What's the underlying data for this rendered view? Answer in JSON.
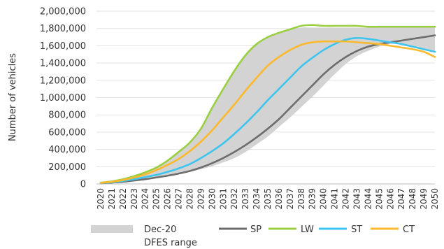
{
  "chart_data": {
    "type": "line",
    "title": "",
    "xlabel": "",
    "ylabel": "Number of vehicles",
    "ylim": [
      0,
      2000000
    ],
    "ytick_step": 200000,
    "ytick_labels": [
      "0",
      "200,000",
      "400,000",
      "600,000",
      "800,000",
      "1,000,000",
      "1,200,000",
      "1,400,000",
      "1,600,000",
      "1,800,000",
      "2,000,000"
    ],
    "grid": "horizontal",
    "legend_position": "bottom",
    "categories": [
      "2020",
      "2021",
      "2022",
      "2023",
      "2024",
      "2025",
      "2026",
      "2027",
      "2028",
      "2029",
      "2030",
      "2031",
      "2032",
      "2033",
      "2034",
      "2035",
      "2036",
      "2037",
      "2038",
      "2039",
      "2040",
      "2041",
      "2042",
      "2043",
      "2044",
      "2045",
      "2046",
      "2047",
      "2048",
      "2049",
      "2050"
    ],
    "range": {
      "name": "Dec-20 DFES range",
      "name_line1": "Dec-20",
      "name_line2": "DFES range",
      "color": "#d3d3d3",
      "upper": [
        15000,
        30000,
        55000,
        90000,
        135000,
        190000,
        270000,
        370000,
        480000,
        640000,
        880000,
        1100000,
        1310000,
        1490000,
        1620000,
        1700000,
        1750000,
        1790000,
        1810000,
        1810000,
        1810000,
        1810000,
        1810000,
        1810000,
        1810000,
        1810000,
        1810000,
        1810000,
        1810000,
        1810000,
        1810000
      ],
      "lower": [
        8000,
        16000,
        25000,
        40000,
        55000,
        75000,
        95000,
        115000,
        140000,
        170000,
        205000,
        250000,
        300000,
        370000,
        460000,
        550000,
        660000,
        770000,
        890000,
        1010000,
        1140000,
        1270000,
        1390000,
        1480000,
        1540000,
        1590000,
        1620000,
        1620000,
        1600000,
        1570000,
        1540000
      ]
    },
    "series": [
      {
        "name": "SP",
        "color": "#6d6d6d",
        "values": [
          8000,
          16000,
          25000,
          40000,
          55000,
          75000,
          95000,
          120000,
          150000,
          190000,
          240000,
          300000,
          370000,
          450000,
          540000,
          640000,
          750000,
          880000,
          1010000,
          1140000,
          1270000,
          1380000,
          1470000,
          1540000,
          1590000,
          1620000,
          1640000,
          1660000,
          1680000,
          1700000,
          1720000
        ]
      },
      {
        "name": "LW",
        "color": "#9bcf42",
        "values": [
          15000,
          30000,
          55000,
          90000,
          135000,
          190000,
          270000,
          370000,
          480000,
          640000,
          880000,
          1100000,
          1310000,
          1490000,
          1620000,
          1700000,
          1750000,
          1790000,
          1830000,
          1840000,
          1830000,
          1830000,
          1830000,
          1830000,
          1820000,
          1820000,
          1820000,
          1820000,
          1820000,
          1820000,
          1820000
        ]
      },
      {
        "name": "ST",
        "color": "#3ec5ef",
        "values": [
          10000,
          20000,
          35000,
          55000,
          80000,
          105000,
          140000,
          180000,
          230000,
          300000,
          380000,
          470000,
          580000,
          700000,
          830000,
          970000,
          1100000,
          1230000,
          1360000,
          1460000,
          1550000,
          1620000,
          1670000,
          1690000,
          1680000,
          1660000,
          1640000,
          1620000,
          1590000,
          1560000,
          1530000
        ]
      },
      {
        "name": "CT",
        "color": "#fdb92d",
        "values": [
          12000,
          25000,
          45000,
          75000,
          110000,
          160000,
          220000,
          290000,
          380000,
          490000,
          620000,
          770000,
          920000,
          1080000,
          1230000,
          1370000,
          1470000,
          1550000,
          1610000,
          1640000,
          1650000,
          1650000,
          1650000,
          1640000,
          1630000,
          1620000,
          1600000,
          1580000,
          1560000,
          1530000,
          1470000
        ]
      }
    ]
  }
}
